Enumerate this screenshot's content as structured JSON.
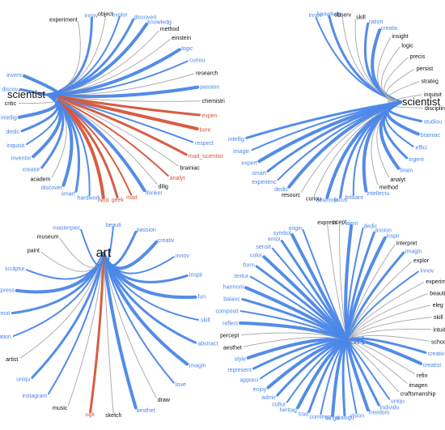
{
  "colors": {
    "blue": "#4a86e8",
    "red": "#d4553a",
    "gray": "#aaaaaa",
    "dark": "#111111"
  },
  "panels": [
    {
      "id": "tl",
      "hub": {
        "text": "scientist",
        "color": "#111111",
        "side": "left"
      },
      "words": [
        {
          "text": "experiment",
          "c": "dark"
        },
        {
          "text": "innov",
          "c": "blue"
        },
        {
          "text": "object",
          "c": "dark"
        },
        {
          "text": "explor",
          "c": "blue"
        },
        {
          "text": "discoveri",
          "c": "blue"
        },
        {
          "text": "knowledg",
          "c": "blue"
        },
        {
          "text": "method",
          "c": "dark"
        },
        {
          "text": "einstein",
          "c": "dark"
        },
        {
          "text": "logic",
          "c": "blue"
        },
        {
          "text": "curiou",
          "c": "blue"
        },
        {
          "text": "research",
          "c": "dark"
        },
        {
          "text": "passion",
          "c": "blue"
        },
        {
          "text": "chemistri",
          "c": "dark"
        },
        {
          "text": "expen",
          "c": "red"
        },
        {
          "text": "bore",
          "c": "red"
        },
        {
          "text": "respect",
          "c": "blue"
        },
        {
          "text": "mad_scientist",
          "c": "red"
        },
        {
          "text": "brainiac",
          "c": "dark"
        },
        {
          "text": "analyt",
          "c": "red"
        },
        {
          "text": "dilig",
          "c": "dark"
        },
        {
          "text": "thinker",
          "c": "blue"
        },
        {
          "text": "mad",
          "c": "red"
        },
        {
          "text": "geek",
          "c": "red"
        },
        {
          "text": "nerd",
          "c": "red"
        },
        {
          "text": "hardwork",
          "c": "blue"
        },
        {
          "text": "smart",
          "c": "blue"
        },
        {
          "text": "discover",
          "c": "blue"
        },
        {
          "text": "academ",
          "c": "dark"
        },
        {
          "text": "creator",
          "c": "blue"
        },
        {
          "text": "inventor",
          "c": "blue"
        },
        {
          "text": "inquisit",
          "c": "blue"
        },
        {
          "text": "dedic",
          "c": "blue"
        },
        {
          "text": "intellig",
          "c": "blue"
        },
        {
          "text": "critic",
          "c": "dark"
        },
        {
          "text": "discov",
          "c": "blue"
        },
        {
          "text": "invent",
          "c": "blue"
        }
      ]
    },
    {
      "id": "tr",
      "hub": {
        "text": "scientist",
        "color": "#111111",
        "side": "right"
      },
      "words": [
        {
          "text": "innov",
          "c": "blue"
        },
        {
          "text": "knowledg",
          "c": "blue"
        },
        {
          "text": "observ",
          "c": "dark"
        },
        {
          "text": "skill",
          "c": "dark"
        },
        {
          "text": "ration",
          "c": "blue"
        },
        {
          "text": "creativ",
          "c": "blue"
        },
        {
          "text": "insight",
          "c": "dark"
        },
        {
          "text": "logic",
          "c": "dark"
        },
        {
          "text": "precis",
          "c": "dark"
        },
        {
          "text": "persist",
          "c": "dark"
        },
        {
          "text": "strateg",
          "c": "dark"
        },
        {
          "text": "inquisit",
          "c": "dark"
        },
        {
          "text": "disciplin",
          "c": "dark"
        },
        {
          "text": "studiou",
          "c": "blue"
        },
        {
          "text": "brainiac",
          "c": "blue"
        },
        {
          "text": "effici",
          "c": "blue"
        },
        {
          "text": "ingeni",
          "c": "blue"
        },
        {
          "text": "brain",
          "c": "blue"
        },
        {
          "text": "analyt",
          "c": "dark"
        },
        {
          "text": "method",
          "c": "dark"
        },
        {
          "text": "intellectu",
          "c": "blue"
        },
        {
          "text": "brilliant",
          "c": "blue"
        },
        {
          "text": "focus",
          "c": "blue"
        },
        {
          "text": "determin",
          "c": "blue"
        },
        {
          "text": "curiou",
          "c": "dark"
        },
        {
          "text": "resourc",
          "c": "dark"
        },
        {
          "text": "dedic",
          "c": "blue"
        },
        {
          "text": "experienc",
          "c": "blue"
        },
        {
          "text": "smart",
          "c": "blue"
        },
        {
          "text": "expert",
          "c": "blue"
        },
        {
          "text": "imagin",
          "c": "blue"
        },
        {
          "text": "intellig",
          "c": "blue"
        }
      ]
    },
    {
      "id": "bl",
      "hub": {
        "text": "art",
        "color": "#111111",
        "side": "center"
      },
      "words": [
        {
          "text": "beauti",
          "c": "blue"
        },
        {
          "text": "passion",
          "c": "blue"
        },
        {
          "text": "creativ",
          "c": "blue"
        },
        {
          "text": "innov",
          "c": "blue"
        },
        {
          "text": "inspir",
          "c": "blue"
        },
        {
          "text": "fun",
          "c": "blue"
        },
        {
          "text": "skill",
          "c": "blue"
        },
        {
          "text": "abstract",
          "c": "blue"
        },
        {
          "text": "imagin",
          "c": "blue"
        },
        {
          "text": "love",
          "c": "blue"
        },
        {
          "text": "draw",
          "c": "dark"
        },
        {
          "text": "aesthet",
          "c": "blue"
        },
        {
          "text": "sketch",
          "c": "dark"
        },
        {
          "text": "ugli",
          "c": "red"
        },
        {
          "text": "music",
          "c": "dark"
        },
        {
          "text": "instagram",
          "c": "blue"
        },
        {
          "text": "uniqu",
          "c": "blue"
        },
        {
          "text": "artist",
          "c": "dark"
        },
        {
          "text": "creation",
          "c": "blue"
        },
        {
          "text": "emot",
          "c": "blue"
        },
        {
          "text": "express",
          "c": "blue"
        },
        {
          "text": "sculptur",
          "c": "blue"
        },
        {
          "text": "paint",
          "c": "dark"
        },
        {
          "text": "museum",
          "c": "dark"
        },
        {
          "text": "masterpiec",
          "c": "blue"
        }
      ]
    },
    {
      "id": "br",
      "hub": {
        "text": "art",
        "color": "#4a86e8",
        "side": "right"
      },
      "words": [
        {
          "text": "express",
          "c": "dark"
        },
        {
          "text": "ncept",
          "c": "dark"
        },
        {
          "text": "alent",
          "c": "blue"
        },
        {
          "text": "dedic",
          "c": "blue"
        },
        {
          "text": "assion",
          "c": "blue"
        },
        {
          "text": "inspir",
          "c": "blue"
        },
        {
          "text": "interpret",
          "c": "dark"
        },
        {
          "text": "imagin",
          "c": "blue"
        },
        {
          "text": "explor",
          "c": "dark"
        },
        {
          "text": "innov",
          "c": "blue"
        },
        {
          "text": "experiment",
          "c": "dark"
        },
        {
          "text": "beauti",
          "c": "dark"
        },
        {
          "text": "eleg",
          "c": "dark"
        },
        {
          "text": "skill",
          "c": "dark"
        },
        {
          "text": "intuit",
          "c": "dark"
        },
        {
          "text": "school",
          "c": "dark"
        },
        {
          "text": "creativ",
          "c": "blue"
        },
        {
          "text": "creatist",
          "c": "blue"
        },
        {
          "text": "refin",
          "c": "dark"
        },
        {
          "text": "imagen",
          "c": "dark"
        },
        {
          "text": "craftsmanship",
          "c": "dark"
        },
        {
          "text": "uniqu",
          "c": "blue"
        },
        {
          "text": "individu",
          "c": "blue"
        },
        {
          "text": "freedom",
          "c": "blue"
        },
        {
          "text": "vision",
          "c": "blue"
        },
        {
          "text": "dialogu",
          "c": "blue"
        },
        {
          "text": "langu",
          "c": "blue"
        },
        {
          "text": "commun",
          "c": "blue"
        },
        {
          "text": "trad",
          "c": "blue"
        },
        {
          "text": "heritag",
          "c": "blue"
        },
        {
          "text": "cultur",
          "c": "blue"
        },
        {
          "text": "admir",
          "c": "blue"
        },
        {
          "text": "enjoy",
          "c": "blue"
        },
        {
          "text": "appreci",
          "c": "blue"
        },
        {
          "text": "represent",
          "c": "blue"
        },
        {
          "text": "style",
          "c": "blue"
        },
        {
          "text": "aesthet",
          "c": "dark"
        },
        {
          "text": "percept",
          "c": "dark"
        },
        {
          "text": "reflect",
          "c": "blue"
        },
        {
          "text": "composit",
          "c": "blue"
        },
        {
          "text": "balanc",
          "c": "blue"
        },
        {
          "text": "harmoni",
          "c": "blue"
        },
        {
          "text": "textur",
          "c": "blue"
        },
        {
          "text": "form",
          "c": "blue"
        },
        {
          "text": "color",
          "c": "blue"
        },
        {
          "text": "sensit",
          "c": "blue"
        },
        {
          "text": "emot",
          "c": "blue"
        },
        {
          "text": "symbol",
          "c": "blue"
        },
        {
          "text": "origin",
          "c": "blue"
        }
      ]
    }
  ]
}
